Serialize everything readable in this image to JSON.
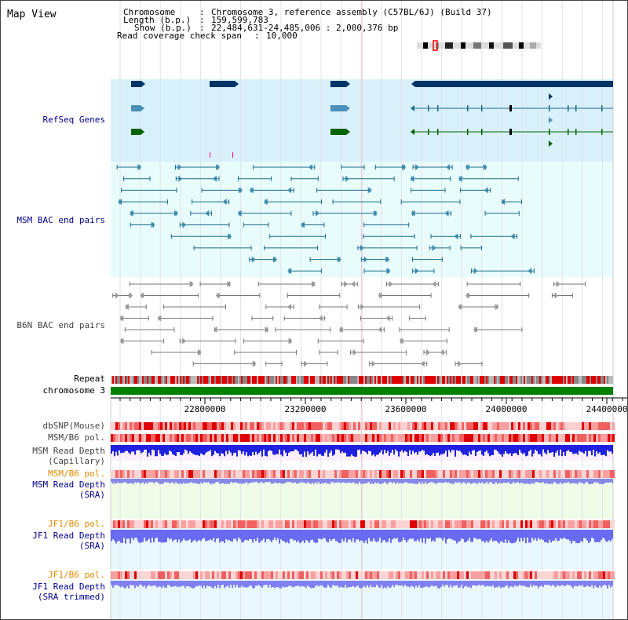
{
  "title": "Map View",
  "info": {
    "chromosome_key": "Chromosome",
    "chromosome_val": "Chromosome 3, reference assembly (C57BL/6J) (Build 37)",
    "length_key": "Length (b.p.)",
    "length_val": "159,599,783",
    "show_key": "Show (b.p.)",
    "show_val": "22,484,631-24,485,006 : 2,000,376 bp",
    "span_key": "Read coverage check span",
    "span_val": "10,000"
  },
  "tracks": {
    "refseq": "RefSeq Genes",
    "msm_bac": "MSM BAC end pairs",
    "b6n_bac": "B6N BAC end pairs",
    "repeat": "Repeat",
    "chromosome": "chromosome 3",
    "dbsnp": "dbSNP(Mouse)",
    "msm_b6_pol1": "MSM/B6 pol.",
    "msm_depth_cap_1": "MSM Read Depth",
    "msm_depth_cap_2": "(Capillary)",
    "msm_b6_pol2": "MSM/B6 pol.",
    "msm_depth_sra_1": "MSM Read Depth",
    "msm_depth_sra_2": "(SRA)",
    "jf1_b6_pol1": "JF1/B6 pol.",
    "jf1_depth_sra_1": "JF1 Read Depth",
    "jf1_depth_sra_2": "(SRA)",
    "jf1_b6_pol2": "JF1/B6 pol.",
    "jf1_depth_trim_1": "JF1 Read Depth",
    "jf1_depth_trim_2": "(SRA trimmed)"
  },
  "axis": {
    "ticks": [
      "22800000",
      "23200000",
      "23600000",
      "24000000",
      "24400000"
    ]
  },
  "colors": {
    "blue_label": "#00008b",
    "orange_label": "#e68a00",
    "refseq_bg": "#d8f0fa",
    "bac_bg": "#e8fcfc",
    "gene_dark": "#003366",
    "gene_mid": "#4a90b8",
    "gene_green": "#006400",
    "chrom_green": "#008000"
  }
}
